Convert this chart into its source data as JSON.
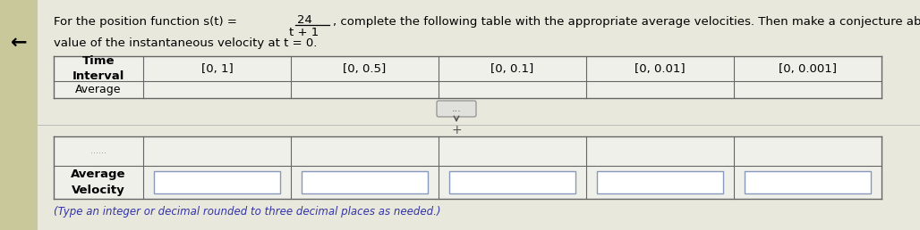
{
  "fraction_num": "24",
  "fraction_den": "t + 1",
  "prefix": "For the position function s(t) = ",
  "suffix": ", complete the following table with the appropriate average velocities. Then make a conjecture about the",
  "line2": "value of the instantaneous velocity at t = 0.",
  "col_headers": [
    "[0, 1]",
    "[0, 0.5]",
    "[0, 0.1]",
    "[0, 0.01]",
    "[0, 0.001]"
  ],
  "time_interval_label": "Time\nInterval",
  "average_label": "Average",
  "avg_vel_label": "Average\nVelocity",
  "partial_label": "......",
  "footnote": "(Type an integer or decimal rounded to three decimal places as needed.)",
  "bg_color": "#d8d8cc",
  "content_bg": "#e8e8dc",
  "table_bg": "#f0f0eb",
  "input_box_color": "#ffffff",
  "input_box_border": "#8899bb",
  "text_color": "#000000",
  "left_panel_color": "#c8c89a"
}
